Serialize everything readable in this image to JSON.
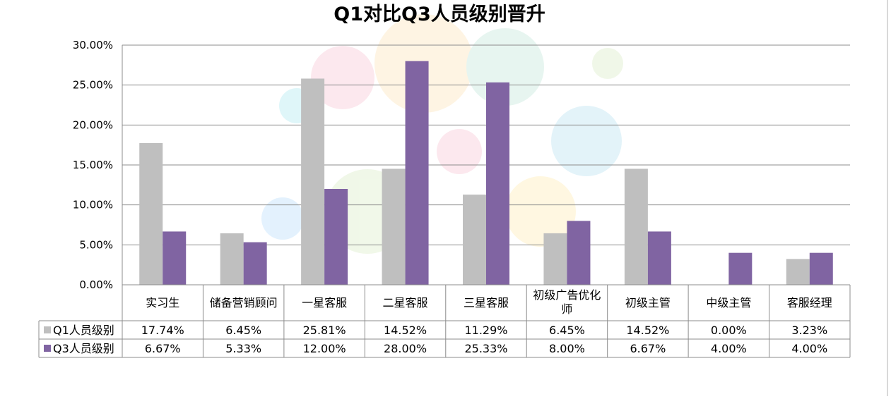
{
  "chart_data": {
    "type": "bar",
    "title": "Q1对比Q3人员级别晋升",
    "categories": [
      "实习生",
      "储备营销顾问",
      "一星客服",
      "二星客服",
      "三星客服",
      "初级广告优化师",
      "初级主管",
      "中级主管",
      "客服经理"
    ],
    "category_lines": [
      [
        "实习生"
      ],
      [
        "储备营销顾问"
      ],
      [
        "一星客服"
      ],
      [
        "二星客服"
      ],
      [
        "三星客服"
      ],
      [
        "初级广告优化",
        "师"
      ],
      [
        "初级主管"
      ],
      [
        "中级主管"
      ],
      [
        "客服经理"
      ]
    ],
    "series": [
      {
        "name": "Q1人员级别",
        "color": "#bfbfbf",
        "values": [
          17.74,
          6.45,
          25.81,
          14.52,
          11.29,
          6.45,
          14.52,
          0.0,
          3.23
        ],
        "labels": [
          "17.74%",
          "6.45%",
          "25.81%",
          "14.52%",
          "11.29%",
          "6.45%",
          "14.52%",
          "0.00%",
          "3.23%"
        ]
      },
      {
        "name": "Q3人员级别",
        "color": "#8064a2",
        "values": [
          6.67,
          5.33,
          12.0,
          28.0,
          25.33,
          8.0,
          6.67,
          4.0,
          4.0
        ],
        "labels": [
          "6.67%",
          "5.33%",
          "12.00%",
          "28.00%",
          "25.33%",
          "8.00%",
          "6.67%",
          "4.00%",
          "4.00%"
        ]
      }
    ],
    "ylim": [
      0,
      30
    ],
    "y_ticks": [
      "0.00%",
      "5.00%",
      "10.00%",
      "15.00%",
      "20.00%",
      "25.00%",
      "30.00%"
    ],
    "grid": true,
    "legend": "data-table"
  }
}
